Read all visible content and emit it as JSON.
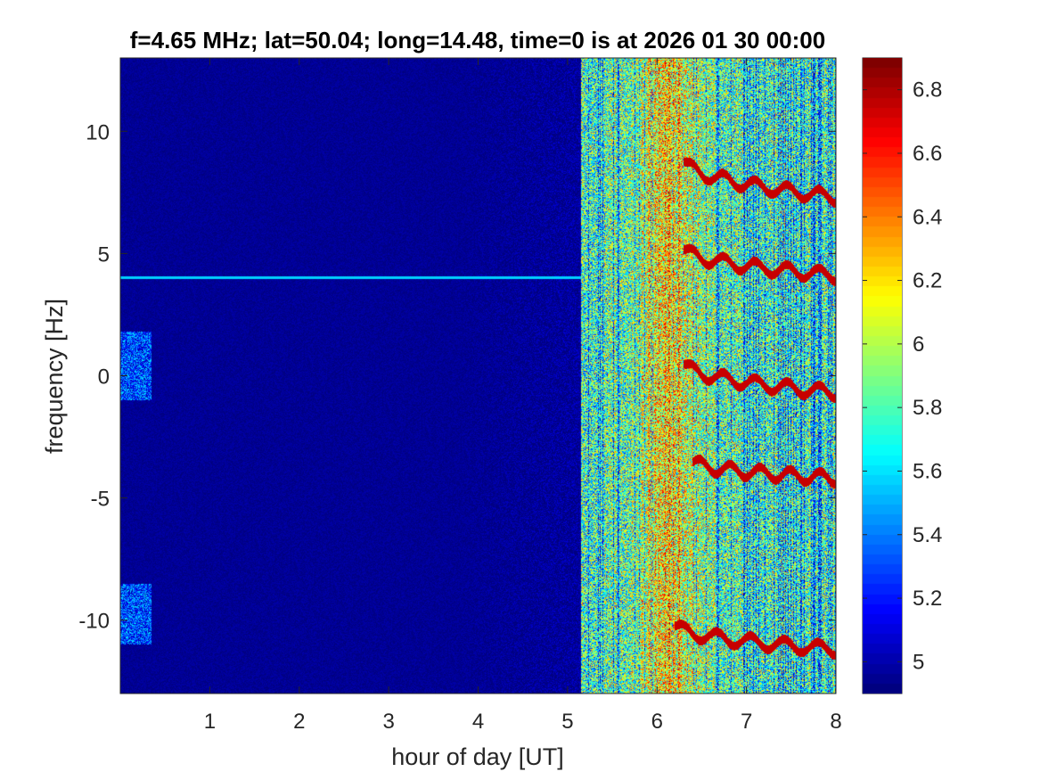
{
  "chart_data": {
    "type": "heatmap",
    "title": "f=4.65 MHz;  lat=50.04; long=14.48, time=0 is at 2026 01 30 00:00",
    "xlabel": "hour of day [UT]",
    "ylabel": "frequency [Hz]",
    "xlim": [
      0,
      8
    ],
    "ylim": [
      -13,
      13
    ],
    "xticks": [
      1,
      2,
      3,
      4,
      5,
      6,
      7,
      8
    ],
    "xtick_labels": [
      "1",
      "2",
      "3",
      "4",
      "5",
      "6",
      "7",
      "8"
    ],
    "yticks": [
      10,
      5,
      0,
      -5,
      -10
    ],
    "ytick_labels": [
      "10",
      "5",
      "0",
      "-5",
      "-10"
    ],
    "colorbar": {
      "colormap": "jet",
      "clim": [
        4.9,
        6.9
      ],
      "ticks": [
        6.8,
        6.6,
        6.4,
        6.2,
        6,
        5.8,
        5.6,
        5.4,
        5.2,
        5
      ],
      "tick_labels": [
        "6.8",
        "6.6",
        "6.4",
        "6.2",
        "6",
        "5.8",
        "5.6",
        "5.4",
        "5.2",
        "5"
      ]
    },
    "features": {
      "quiet_region_hours": [
        0,
        5.15
      ],
      "active_region_hours": [
        5.15,
        8
      ],
      "peak_activity_hour": 6.15,
      "constant_line_hz": 4.0,
      "doppler_traces": [
        {
          "start_hour": 6.3,
          "start_hz": 8.8,
          "end_hour": 8.0,
          "end_hz": 7.3
        },
        {
          "start_hour": 6.3,
          "start_hz": 5.2,
          "end_hour": 8.0,
          "end_hz": 4.1
        },
        {
          "start_hour": 6.3,
          "start_hz": 0.5,
          "end_hour": 8.0,
          "end_hz": -0.7
        },
        {
          "start_hour": 6.4,
          "start_hz": -3.5,
          "end_hour": 8.0,
          "end_hz": -4.2
        },
        {
          "start_hour": 6.2,
          "start_hz": -10.2,
          "end_hour": 8.0,
          "end_hz": -11.2
        }
      ]
    },
    "grid": false
  }
}
